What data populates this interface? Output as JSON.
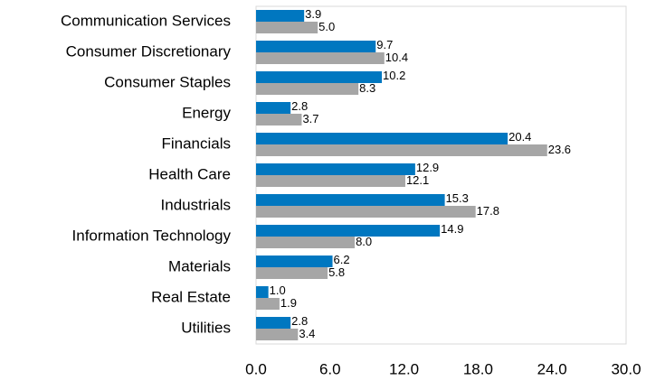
{
  "chart_data": {
    "type": "bar",
    "orientation": "horizontal",
    "categories": [
      "Communication Services",
      "Consumer Discretionary",
      "Consumer Staples",
      "Energy",
      "Financials",
      "Health Care",
      "Industrials",
      "Information Technology",
      "Materials",
      "Real Estate",
      "Utilities"
    ],
    "series": [
      {
        "color": "#0077c0",
        "values": [
          3.9,
          9.7,
          10.2,
          2.8,
          20.4,
          12.9,
          15.3,
          14.9,
          6.2,
          1.0,
          2.8
        ],
        "value_labels": [
          "3.9",
          "9.7",
          "10.2",
          "2.8",
          "20.4",
          "12.9",
          "15.3",
          "14.9",
          "6.2",
          "1.0",
          "2.8"
        ]
      },
      {
        "color": "#a6a6a6",
        "values": [
          5.0,
          10.4,
          8.3,
          3.7,
          23.6,
          12.1,
          17.8,
          8.0,
          5.8,
          1.9,
          3.4
        ],
        "value_labels": [
          "5.0",
          "10.4",
          "8.3",
          "3.7",
          "23.6",
          "12.1",
          "17.8",
          "8.0",
          "5.8",
          "1.9",
          "3.4"
        ]
      }
    ],
    "xlim": [
      0,
      30
    ],
    "xticks": [
      {
        "value": 0,
        "label": "0.0"
      },
      {
        "value": 6,
        "label": "6.0"
      },
      {
        "value": 12,
        "label": "12.0"
      },
      {
        "value": 18,
        "label": "18.0"
      },
      {
        "value": 24,
        "label": "24.0"
      },
      {
        "value": 30,
        "label": "30.0"
      }
    ],
    "grid": false
  }
}
